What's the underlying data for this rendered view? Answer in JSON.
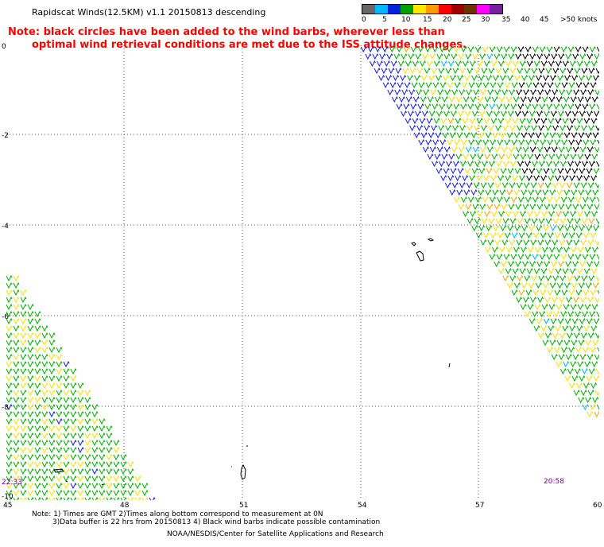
{
  "header": {
    "title": "Rapidscat Winds(12.5KM) v1.1 20150813 descending",
    "note_line1": "Note: black circles have been added to the wind barbs, wherever less than",
    "note_line2": "optimal wind retrieval conditions are met due to the ISS attitude changes."
  },
  "legend": {
    "labels": [
      "0",
      "5",
      "10",
      "15",
      "20",
      "25",
      "30",
      "35",
      "40",
      "45",
      ">50 knots"
    ],
    "colors": [
      "#666666",
      "#00b8ff",
      "#0022dd",
      "#00a000",
      "#ffe800",
      "#ff9a00",
      "#ff0000",
      "#a00000",
      "#6b3300",
      "#ff00ff",
      "#7a1fa2"
    ]
  },
  "axes": {
    "lat_labels": [
      "0",
      "-2",
      "-4",
      "-6",
      "-8",
      "-10"
    ],
    "lon_labels": [
      "45",
      "48",
      "51",
      "54",
      "57",
      "60"
    ]
  },
  "times": {
    "left": "22:33",
    "right": "20:58"
  },
  "footer": {
    "line1": "Note: 1) Times are GMT 2)Times along bottom correspond to measurement at 0N",
    "line2": "3)Data buffer is 22 hrs from 20150813 4) Black wind barbs indicate possible contamination",
    "credit": "NOAA/NESDIS/Center for Satellite Applications and Research"
  }
}
